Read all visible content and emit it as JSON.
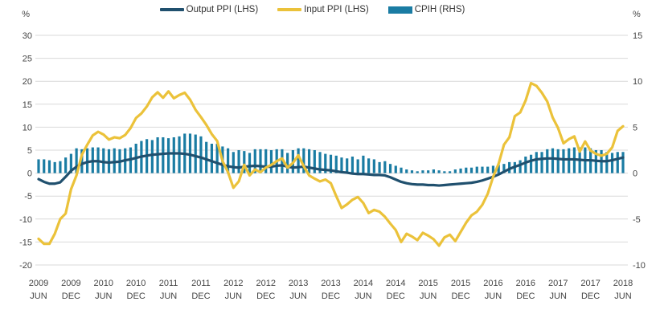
{
  "chart_data": {
    "type": "combo-line-bar",
    "title": "",
    "x_start": "2009 JUN",
    "x_end": "2018 JUN",
    "x_frequency": "monthly",
    "x_tick_labels": [
      {
        "year": "2009",
        "month": "JUN"
      },
      {
        "year": "2009",
        "month": "DEC"
      },
      {
        "year": "2010",
        "month": "JUN"
      },
      {
        "year": "2010",
        "month": "DEC"
      },
      {
        "year": "2011",
        "month": "JUN"
      },
      {
        "year": "2011",
        "month": "DEC"
      },
      {
        "year": "2012",
        "month": "JUN"
      },
      {
        "year": "2012",
        "month": "DEC"
      },
      {
        "year": "2013",
        "month": "JUN"
      },
      {
        "year": "2013",
        "month": "DEC"
      },
      {
        "year": "2014",
        "month": "JUN"
      },
      {
        "year": "2014",
        "month": "DEC"
      },
      {
        "year": "2015",
        "month": "JUN"
      },
      {
        "year": "2015",
        "month": "DEC"
      },
      {
        "year": "2016",
        "month": "JUN"
      },
      {
        "year": "2016",
        "month": "DEC"
      },
      {
        "year": "2017",
        "month": "JUN"
      },
      {
        "year": "2017",
        "month": "DEC"
      },
      {
        "year": "2018",
        "month": "JUN"
      }
    ],
    "left_axis": {
      "unit": "%",
      "ticks": [
        30,
        25,
        20,
        15,
        10,
        5,
        0,
        -5,
        -10,
        -15,
        -20
      ],
      "range": [
        -20,
        30
      ]
    },
    "right_axis": {
      "unit": "%",
      "ticks": [
        15,
        10,
        5,
        0,
        -5,
        -10
      ],
      "range": [
        -10,
        15
      ]
    },
    "grid": true,
    "gridline_color": "#d9d9d9",
    "text_color": "#454545",
    "legend_position": "top-center",
    "series": [
      {
        "name": "Output PPI (LHS)",
        "type": "line",
        "axis": "left",
        "color": "#20506e",
        "values": [
          -1.3,
          -1.9,
          -2.3,
          -2.3,
          -2.0,
          -0.8,
          0.5,
          1.4,
          2.0,
          2.4,
          2.6,
          2.6,
          2.4,
          2.3,
          2.4,
          2.5,
          2.8,
          3.0,
          3.3,
          3.6,
          3.8,
          4.0,
          4.1,
          4.2,
          4.3,
          4.3,
          4.3,
          4.2,
          4.0,
          3.7,
          3.4,
          3.0,
          2.6,
          2.2,
          1.8,
          1.5,
          1.3,
          1.2,
          1.4,
          1.5,
          1.6,
          1.5,
          1.4,
          1.4,
          1.6,
          1.7,
          1.4,
          1.2,
          1.3,
          1.4,
          1.2,
          1.0,
          0.8,
          0.7,
          0.6,
          0.4,
          0.2,
          0.1,
          -0.1,
          -0.2,
          -0.2,
          -0.3,
          -0.4,
          -0.4,
          -0.5,
          -0.9,
          -1.4,
          -1.9,
          -2.2,
          -2.4,
          -2.5,
          -2.5,
          -2.6,
          -2.6,
          -2.7,
          -2.6,
          -2.5,
          -2.4,
          -2.3,
          -2.2,
          -2.1,
          -1.9,
          -1.6,
          -1.2,
          -0.8,
          -0.3,
          0.3,
          0.9,
          1.4,
          1.8,
          2.3,
          2.7,
          3.0,
          3.1,
          3.2,
          3.2,
          3.1,
          3.0,
          3.0,
          3.0,
          2.9,
          2.8,
          2.8,
          2.7,
          2.6,
          2.6,
          2.8,
          3.1,
          3.4
        ]
      },
      {
        "name": "Input PPI (LHS)",
        "type": "line",
        "axis": "left",
        "color": "#ebc23a",
        "values": [
          -14.3,
          -15.4,
          -15.4,
          -13.2,
          -10.0,
          -8.8,
          -3.5,
          -0.5,
          4.0,
          6.2,
          8.2,
          9.0,
          8.4,
          7.3,
          7.8,
          7.6,
          8.3,
          9.8,
          12.0,
          13.0,
          14.5,
          16.5,
          17.6,
          16.4,
          17.8,
          16.3,
          17.0,
          17.5,
          16.0,
          13.8,
          12.2,
          10.5,
          8.5,
          7.0,
          2.6,
          0.2,
          -3.2,
          -1.8,
          1.8,
          -0.5,
          0.8,
          0.2,
          1.2,
          1.8,
          2.6,
          3.2,
          1.2,
          2.2,
          3.9,
          1.5,
          -0.5,
          -1.2,
          -1.8,
          -1.4,
          -2.2,
          -5.0,
          -7.6,
          -6.8,
          -5.8,
          -5.2,
          -6.5,
          -8.7,
          -8.0,
          -8.4,
          -9.5,
          -11.0,
          -12.4,
          -15.0,
          -13.2,
          -13.8,
          -14.6,
          -13.0,
          -13.6,
          -14.4,
          -15.8,
          -14.0,
          -13.4,
          -14.8,
          -12.8,
          -10.8,
          -9.2,
          -8.4,
          -6.9,
          -4.5,
          -0.8,
          2.0,
          6.2,
          7.8,
          12.4,
          13.2,
          15.8,
          19.6,
          19.0,
          17.5,
          15.6,
          12.1,
          9.8,
          6.5,
          7.4,
          8.0,
          4.7,
          6.9,
          4.9,
          4.2,
          3.8,
          4.2,
          5.6,
          9.2,
          10.2
        ]
      },
      {
        "name": "CPIH (RHS)",
        "type": "bar",
        "axis": "right",
        "color": "#1a7ca3",
        "values": [
          1.5,
          1.5,
          1.4,
          1.2,
          1.3,
          1.7,
          2.1,
          2.7,
          2.6,
          2.7,
          2.8,
          2.8,
          2.7,
          2.6,
          2.7,
          2.6,
          2.7,
          2.8,
          3.2,
          3.5,
          3.7,
          3.6,
          3.9,
          3.9,
          3.8,
          3.9,
          4.0,
          4.3,
          4.3,
          4.2,
          4.0,
          3.4,
          3.2,
          3.2,
          2.9,
          2.7,
          2.3,
          2.5,
          2.4,
          2.2,
          2.6,
          2.6,
          2.6,
          2.5,
          2.6,
          2.6,
          2.2,
          2.5,
          2.7,
          2.7,
          2.6,
          2.5,
          2.3,
          2.1,
          2.0,
          1.9,
          1.7,
          1.6,
          1.8,
          1.5,
          1.9,
          1.6,
          1.5,
          1.2,
          1.3,
          1.0,
          0.8,
          0.6,
          0.4,
          0.3,
          0.2,
          0.3,
          0.3,
          0.4,
          0.3,
          0.2,
          0.2,
          0.4,
          0.5,
          0.6,
          0.6,
          0.7,
          0.7,
          0.7,
          0.8,
          0.9,
          1.0,
          1.2,
          1.2,
          1.4,
          1.8,
          2.0,
          2.3,
          2.3,
          2.6,
          2.7,
          2.6,
          2.6,
          2.7,
          2.8,
          2.8,
          2.8,
          2.7,
          2.5,
          2.5,
          2.3,
          2.2,
          2.3,
          2.3
        ]
      }
    ]
  }
}
